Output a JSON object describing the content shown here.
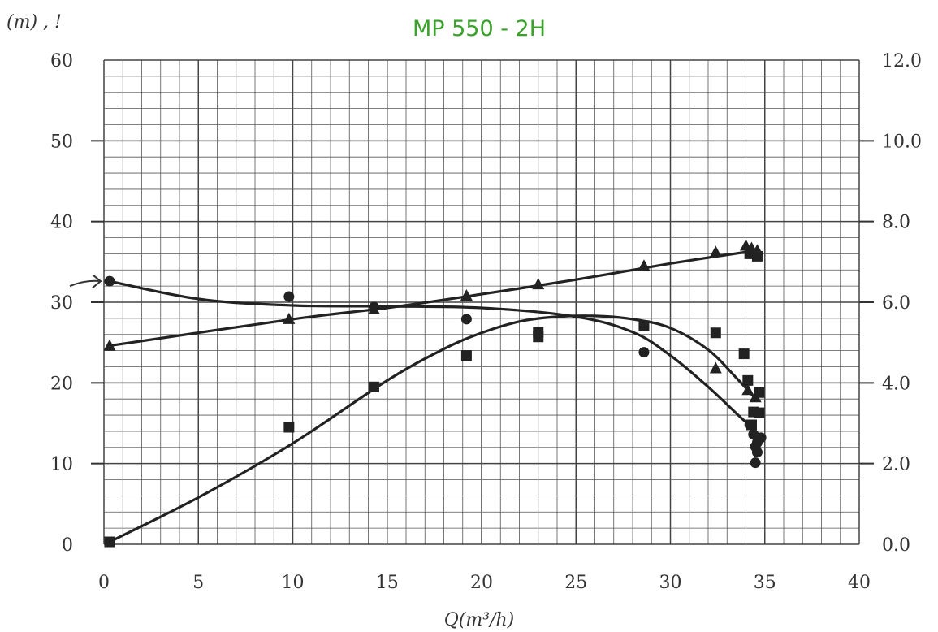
{
  "chart_data": {
    "type": "line",
    "title": "MP 550 - 2H",
    "xlabel": "Q(m³/h)",
    "ylabel": "(m) , !",
    "xlim": [
      0,
      40
    ],
    "ylim": [
      0,
      60
    ],
    "y2lim": [
      0.0,
      12.0
    ],
    "x_ticks": [
      "0",
      "5",
      "10",
      "15",
      "20",
      "25",
      "30",
      "35",
      "40"
    ],
    "y_ticks": [
      "0",
      "10",
      "20",
      "30",
      "40",
      "50",
      "60"
    ],
    "y2_ticks": [
      "0.0",
      "2.0",
      "4.0",
      "6.0",
      "8.0",
      "10.0",
      "12.0"
    ],
    "grid": true,
    "series": [
      {
        "marker": "circle",
        "curve": [
          [
            0.3,
            32.6
          ],
          [
            5,
            30.4
          ],
          [
            10,
            29.6
          ],
          [
            15,
            29.5
          ],
          [
            20,
            29.3
          ],
          [
            25,
            28.2
          ],
          [
            28,
            26.3
          ],
          [
            30,
            23.4
          ],
          [
            32,
            19.5
          ],
          [
            33.5,
            16.2
          ],
          [
            34.3,
            14.5
          ]
        ],
        "points": [
          [
            0.3,
            32.6
          ],
          [
            9.8,
            30.7
          ],
          [
            14.3,
            29.4
          ],
          [
            19.2,
            27.9
          ],
          [
            23,
            26.3
          ],
          [
            28.6,
            23.8
          ],
          [
            34.2,
            14.8
          ],
          [
            34.4,
            13.6
          ],
          [
            34.5,
            12.1
          ],
          [
            34.6,
            11.4
          ],
          [
            34.5,
            10.1
          ],
          [
            34.8,
            13.2
          ],
          [
            34.6,
            12.6
          ]
        ]
      },
      {
        "marker": "triangle",
        "curve": [
          [
            0.3,
            24.6
          ],
          [
            10,
            27.9
          ],
          [
            15,
            29.3
          ],
          [
            20,
            31
          ],
          [
            25,
            32.8
          ],
          [
            30,
            34.8
          ],
          [
            34.5,
            36.4
          ]
        ],
        "points": [
          [
            0.3,
            24.6
          ],
          [
            9.8,
            27.9
          ],
          [
            14.3,
            29.1
          ],
          [
            19.2,
            30.8
          ],
          [
            23,
            32.2
          ],
          [
            28.6,
            34.5
          ],
          [
            32.4,
            36.2
          ],
          [
            34,
            37
          ],
          [
            34.3,
            36.7
          ],
          [
            34.6,
            36.4
          ],
          [
            32.4,
            21.8
          ],
          [
            34.1,
            19.1
          ],
          [
            34.5,
            18.2
          ]
        ]
      },
      {
        "marker": "square",
        "curve": [
          [
            0.3,
            0.3
          ],
          [
            5,
            5.8
          ],
          [
            10,
            12.5
          ],
          [
            15,
            20.3
          ],
          [
            18,
            24.2
          ],
          [
            20,
            26.2
          ],
          [
            22,
            27.6
          ],
          [
            24,
            28.2
          ],
          [
            26,
            28.3
          ],
          [
            28,
            27.9
          ],
          [
            30,
            26.8
          ],
          [
            32,
            24.1
          ],
          [
            33.5,
            20.6
          ],
          [
            34.6,
            17.8
          ]
        ],
        "points": [
          [
            0.3,
            0.3
          ],
          [
            9.8,
            14.5
          ],
          [
            14.3,
            19.5
          ],
          [
            19.2,
            23.4
          ],
          [
            23,
            25.7
          ],
          [
            23,
            26.3
          ],
          [
            28.6,
            27.1
          ],
          [
            32.4,
            26.2
          ],
          [
            33.9,
            23.6
          ],
          [
            34.1,
            20.3
          ],
          [
            34.7,
            18.8
          ],
          [
            34.4,
            16.4
          ],
          [
            34.7,
            16.3
          ],
          [
            34.3,
            14.8
          ],
          [
            34.6,
            35.7
          ],
          [
            34.2,
            36.0
          ]
        ]
      }
    ]
  }
}
